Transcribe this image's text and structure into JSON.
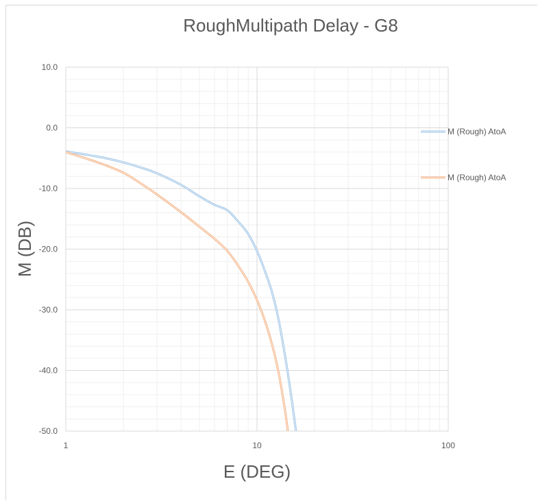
{
  "chart_data": {
    "type": "line",
    "title": "RoughMultipath Delay - G8",
    "xlabel": "E (DEG)",
    "ylabel": "M (DB)",
    "x_scale": "log",
    "xlim": [
      1,
      100
    ],
    "ylim": [
      -50,
      10
    ],
    "x_ticks": [
      "1",
      "10",
      "100"
    ],
    "y_ticks": [
      "10.0",
      "0.0",
      "-10.0",
      "-20.0",
      "-30.0",
      "-40.0",
      "-50.0"
    ],
    "grid": true,
    "legend_position": "right",
    "series": [
      {
        "name": "M (Rough) AtoA",
        "color": "#9dc3e6",
        "x": [
          1,
          1.5,
          2,
          2.5,
          3,
          4,
          5,
          6,
          7,
          8,
          9,
          10,
          11,
          12,
          13,
          14,
          15,
          16
        ],
        "y": [
          -3.9,
          -4.8,
          -5.7,
          -6.6,
          -7.5,
          -9.4,
          -11.3,
          -12.7,
          -13.6,
          -15.5,
          -17.5,
          -20.3,
          -23.6,
          -27.2,
          -31.8,
          -37.5,
          -43.6,
          -50
        ]
      },
      {
        "name": "M (Rough) AtoA",
        "color": "#f4b183",
        "x": [
          1,
          1.5,
          2,
          2.5,
          3,
          4,
          5,
          6,
          7,
          8,
          9,
          10,
          11,
          12,
          13,
          14,
          14.5
        ],
        "y": [
          -4.0,
          -5.8,
          -7.4,
          -9.3,
          -11.0,
          -13.9,
          -16.3,
          -18.3,
          -20.3,
          -22.8,
          -25.4,
          -28.4,
          -31.8,
          -35.8,
          -40.5,
          -46.5,
          -50
        ]
      }
    ]
  }
}
